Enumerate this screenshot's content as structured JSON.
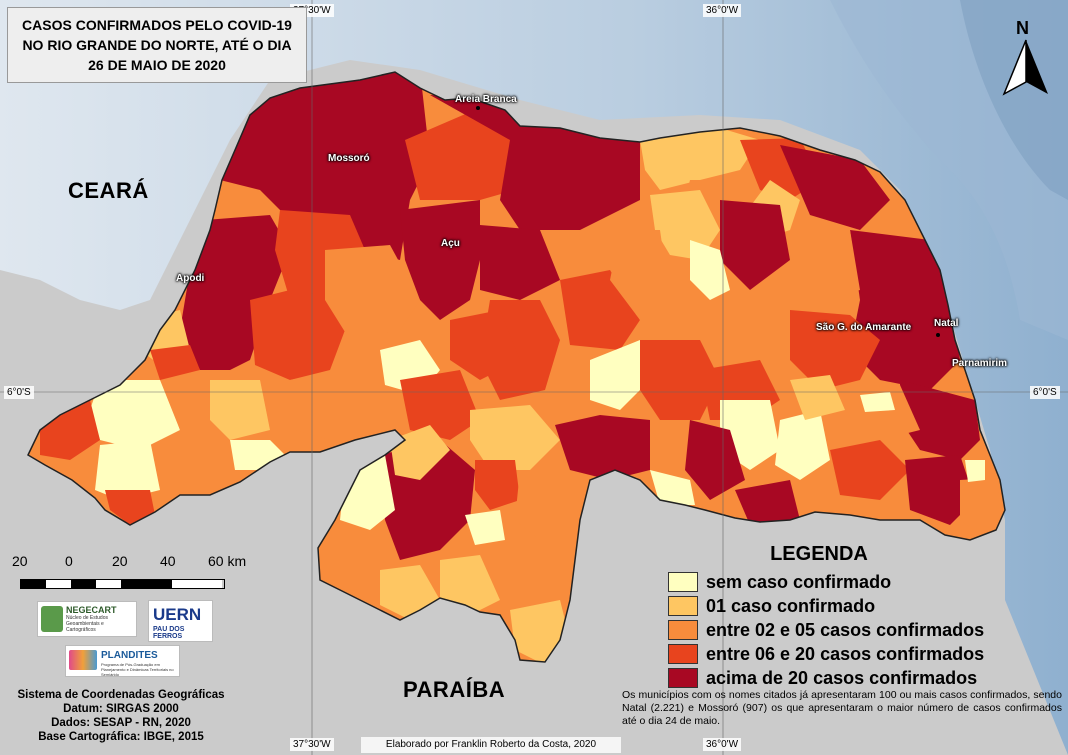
{
  "title": {
    "line1": "CASOS CONFIRMADOS PELO COVID-19",
    "line2": "NO RIO GRANDE DO NORTE, ATÉ O DIA",
    "line3": "26 DE MAIO DE 2020"
  },
  "grid_labels": {
    "top_left": "37°30'W",
    "top_right": "36°0'W",
    "bottom_left": "37°30'W",
    "bottom_right": "36°0'W",
    "left": "6°0'S",
    "right": "6°0'S"
  },
  "north_label": "N",
  "neighbors": {
    "west": "CEARÁ",
    "south": "PARAÍBA"
  },
  "cities": {
    "areia_branca": "Areia Branca",
    "mossoro": "Mossoró",
    "acu": "Açu",
    "apodi": "Apodi",
    "sao_goncalo": "São G. do Amarante",
    "natal": "Natal",
    "parnamirim": "Parnamirim"
  },
  "legend": {
    "title": "LEGENDA",
    "items": [
      {
        "label": "sem caso confirmado",
        "color": "#ffffc0"
      },
      {
        "label": "01 caso confirmado",
        "color": "#fec662"
      },
      {
        "label": "entre 02 e 05 casos confirmados",
        "color": "#f88c3c"
      },
      {
        "label": "entre 06 e 20 casos confirmados",
        "color": "#e8441e"
      },
      {
        "label": "acima de 20 casos confirmados",
        "color": "#a80823"
      }
    ],
    "note": "Os municípios com os nomes citados já apresentaram 100 ou mais casos confirmados, sendo Natal (2.221) e Mossoró (907) os que apresentaram o maior número de casos confirmados até o dia 24 de maio."
  },
  "scale": {
    "labels": [
      "20",
      "0",
      "20",
      "40",
      "60 km"
    ]
  },
  "logos": {
    "negecart": "NEGECART",
    "negecart_sub": "Núcleo de Estudos Geoambientais e Cartográficos",
    "uern": "UERN",
    "uern_sub": "PAU DOS FERROS",
    "plandites": "PLANDITES",
    "plandites_sub": "Programa de Pós-Graduação em Planejamento e Dinâmicas Territoriais no Semiárido"
  },
  "info": {
    "line1": "Sistema de Coordenadas Geográficas",
    "line2": "Datum: SIRGAS 2000",
    "line3": "Dados: SESAP - RN, 2020",
    "line4": "Base Cartográfica: IBGE, 2015"
  },
  "credit": "Elaborado por Franklin Roberto da Costa, 2020",
  "colors": {
    "ocean": "#c7d7e8",
    "neighbor_land": "#cbcbcb",
    "border": "#222222"
  }
}
